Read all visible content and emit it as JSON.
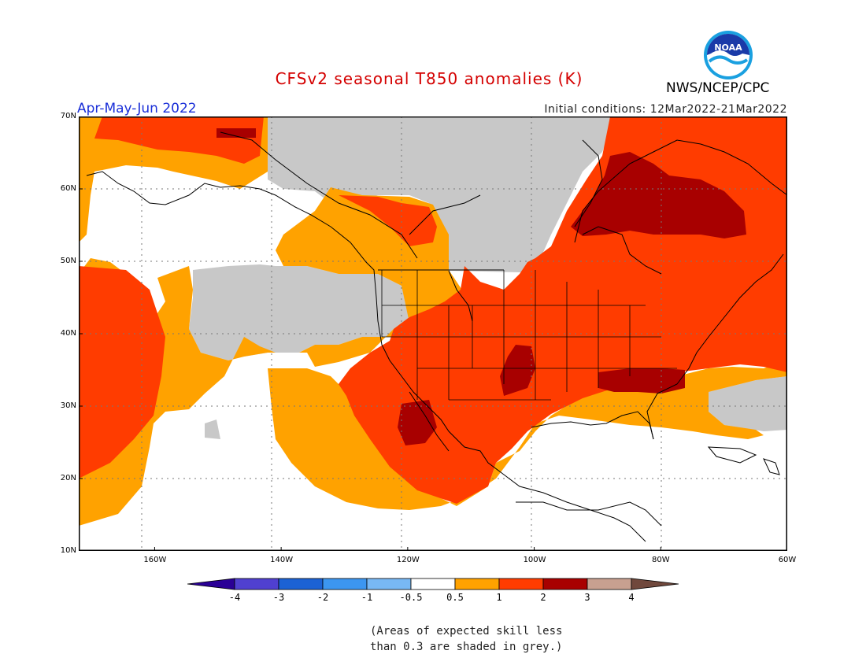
{
  "title": "CFSv2 seasonal T850 anomalies (K)",
  "season": "Apr-May-Jun 2022",
  "initial_conditions": "Initial conditions: 12Mar2022-21Mar2022",
  "agency": "NWS/NCEP/CPC",
  "logo_text": "NOAA",
  "map": {
    "lon_range": [
      -172,
      -60
    ],
    "lat_range": [
      10,
      70
    ],
    "lat_ticks": [
      "10N",
      "20N",
      "30N",
      "40N",
      "50N",
      "60N",
      "70N"
    ],
    "lon_ticks": [
      "160W",
      "140W",
      "120W",
      "100W",
      "80W",
      "60W"
    ],
    "grid": true,
    "grid_lat": [
      20,
      30,
      40,
      50,
      60
    ],
    "grid_lon": [
      -160,
      -140,
      -120,
      -100,
      -80
    ]
  },
  "colorbar": {
    "labels": [
      "-4",
      "-3",
      "-2",
      "-1",
      "-0.5",
      "0.5",
      "1",
      "2",
      "3",
      "4"
    ],
    "colors": [
      "#2a0096",
      "#5040d0",
      "#1c62d4",
      "#3c96f0",
      "#78b8f4",
      "#ffffff",
      "#ffa200",
      "#ff3c00",
      "#a80000",
      "#c8a090",
      "#70483c"
    ],
    "grey_skill_color": "#c8c8c8"
  },
  "note": [
    "(Areas of expected skill less",
    "than 0.3 are shaded in grey.)"
  ]
}
